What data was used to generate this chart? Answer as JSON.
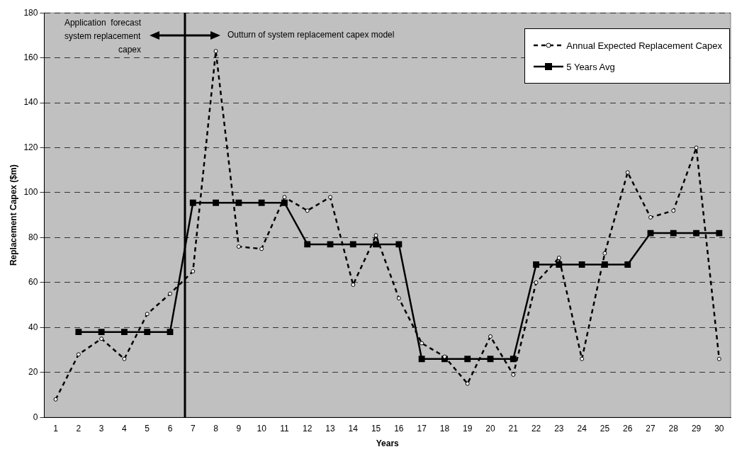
{
  "chart_data": {
    "type": "line",
    "xlabel": "Years",
    "ylabel": "Replacement Capex ($m)",
    "x": [
      1,
      2,
      3,
      4,
      5,
      6,
      7,
      8,
      9,
      10,
      11,
      12,
      13,
      14,
      15,
      16,
      17,
      18,
      19,
      20,
      21,
      22,
      23,
      24,
      25,
      26,
      27,
      28,
      29,
      30
    ],
    "xlim": [
      0.5,
      30.5
    ],
    "xticks": [
      1,
      2,
      3,
      4,
      5,
      6,
      7,
      8,
      9,
      10,
      11,
      12,
      13,
      14,
      15,
      16,
      17,
      18,
      19,
      20,
      21,
      22,
      23,
      24,
      25,
      26,
      27,
      28,
      29,
      30
    ],
    "ylim": [
      0,
      180
    ],
    "yticks": [
      0,
      20,
      40,
      60,
      80,
      100,
      120,
      140,
      160,
      180
    ],
    "grid": "y",
    "legend": "top right",
    "series": [
      {
        "name": "Annual Expected Replacement Capex",
        "color": "#000000",
        "line_style": "dashed",
        "marker": "circle",
        "values": [
          8,
          28,
          35,
          26,
          46,
          55,
          65,
          163,
          76,
          75,
          98,
          92,
          98,
          59,
          81,
          53,
          33,
          27,
          15,
          36,
          19,
          60,
          71,
          26,
          73,
          109,
          89,
          92,
          120,
          26
        ]
      },
      {
        "name": "5 Years Avg",
        "color": "#000000",
        "line_style": "solid",
        "marker": "square",
        "values": [
          null,
          38,
          38,
          38,
          38,
          38,
          95.5,
          95.5,
          95.5,
          95.5,
          95.5,
          77,
          77,
          77,
          77,
          77,
          26,
          26,
          26,
          26,
          26,
          68,
          68,
          68,
          68,
          68,
          82,
          82,
          82,
          82
        ]
      }
    ],
    "ref_lines": [
      {
        "axis": "x",
        "value": 6.65,
        "color": "#000000"
      }
    ],
    "annotations": [
      "Application  forecast\nsystem replacement\ncapex",
      "Outturn of system replacement capex model"
    ]
  }
}
